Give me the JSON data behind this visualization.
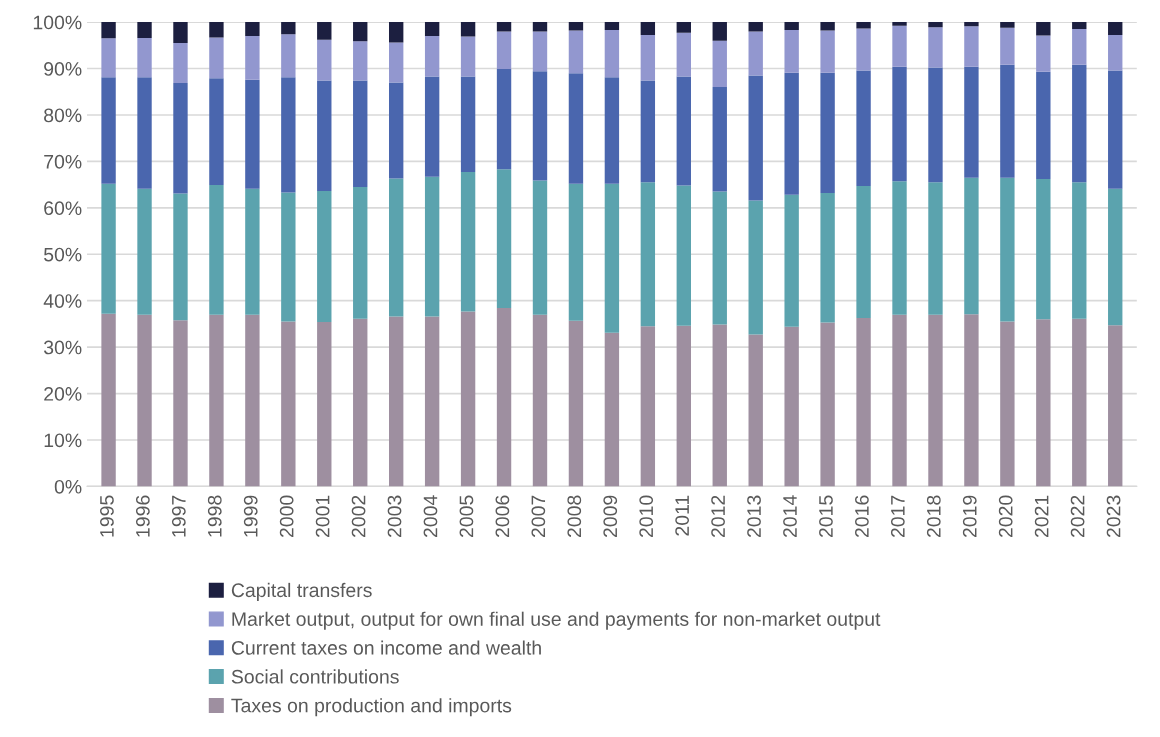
{
  "chart_data": {
    "type": "bar",
    "stacked": true,
    "grid": "y",
    "legend": "bottom",
    "categories": [
      "1995",
      "1996",
      "1997",
      "1998",
      "1999",
      "2000",
      "2001",
      "2002",
      "2003",
      "2004",
      "2005",
      "2006",
      "2007",
      "2008",
      "2009",
      "2010",
      "2011",
      "2012",
      "2013",
      "2014",
      "2015",
      "2016",
      "2017",
      "2018",
      "2019",
      "2020",
      "2021",
      "2022",
      "2023"
    ],
    "ylim": [
      0,
      100
    ],
    "yticks": [
      {
        "value": 0,
        "label": "0%"
      },
      {
        "value": 10,
        "label": "10%"
      },
      {
        "value": 20,
        "label": "20%"
      },
      {
        "value": 30,
        "label": "30%"
      },
      {
        "value": 40,
        "label": "40%"
      },
      {
        "value": 50,
        "label": "50%"
      },
      {
        "value": 60,
        "label": "60%"
      },
      {
        "value": 70,
        "label": "70%"
      },
      {
        "value": 80,
        "label": "80%"
      },
      {
        "value": 90,
        "label": "90%"
      },
      {
        "value": 100,
        "label": "100%"
      }
    ],
    "series": [
      {
        "name": "Taxes on production and imports",
        "color": "#9e8fa0",
        "values": [
          37.2,
          37.0,
          35.8,
          37.0,
          37.0,
          35.5,
          35.4,
          36.1,
          36.6,
          36.6,
          37.7,
          38.4,
          37.0,
          35.7,
          33.1,
          34.5,
          34.6,
          34.9,
          32.7,
          34.4,
          35.3,
          36.3,
          37.0,
          37.0,
          37.1,
          35.5,
          36.0,
          36.1,
          34.7
        ]
      },
      {
        "name": "Social contributions",
        "color": "#5ba3ae",
        "values": [
          28.0,
          27.1,
          27.3,
          27.9,
          27.1,
          27.8,
          28.2,
          28.4,
          29.7,
          30.1,
          30.0,
          29.9,
          28.9,
          29.5,
          32.1,
          31.0,
          30.2,
          28.6,
          28.9,
          28.4,
          27.9,
          28.4,
          28.7,
          28.5,
          29.4,
          31.0,
          30.2,
          29.4,
          29.4
        ]
      },
      {
        "name": "Current taxes on income and wealth",
        "color": "#4a66ae",
        "values": [
          22.9,
          24.0,
          23.8,
          23.0,
          23.5,
          24.8,
          23.8,
          22.9,
          20.7,
          21.6,
          20.6,
          21.6,
          23.5,
          23.8,
          22.9,
          21.9,
          23.5,
          22.5,
          26.9,
          26.3,
          25.9,
          24.9,
          24.7,
          24.7,
          23.9,
          24.3,
          23.1,
          25.3,
          25.5
        ]
      },
      {
        "name": "Market output, output for own final use and payments for non-market output",
        "color": "#9297cf",
        "values": [
          8.4,
          8.5,
          8.6,
          8.8,
          9.4,
          9.3,
          8.8,
          8.5,
          8.6,
          8.7,
          8.6,
          8.1,
          8.6,
          9.2,
          10.2,
          9.8,
          9.4,
          10.0,
          9.5,
          9.2,
          9.1,
          9.0,
          8.8,
          8.7,
          8.7,
          8.0,
          7.8,
          7.7,
          7.6
        ]
      },
      {
        "name": "Capital transfers",
        "color": "#1c1f40",
        "values": [
          3.5,
          3.4,
          4.5,
          3.3,
          3.0,
          2.6,
          3.8,
          4.1,
          4.4,
          3.0,
          3.1,
          2.0,
          2.0,
          1.8,
          1.7,
          2.8,
          2.3,
          4.0,
          2.0,
          1.7,
          1.8,
          1.4,
          0.8,
          1.1,
          0.9,
          1.2,
          2.9,
          1.5,
          2.8
        ]
      }
    ]
  }
}
